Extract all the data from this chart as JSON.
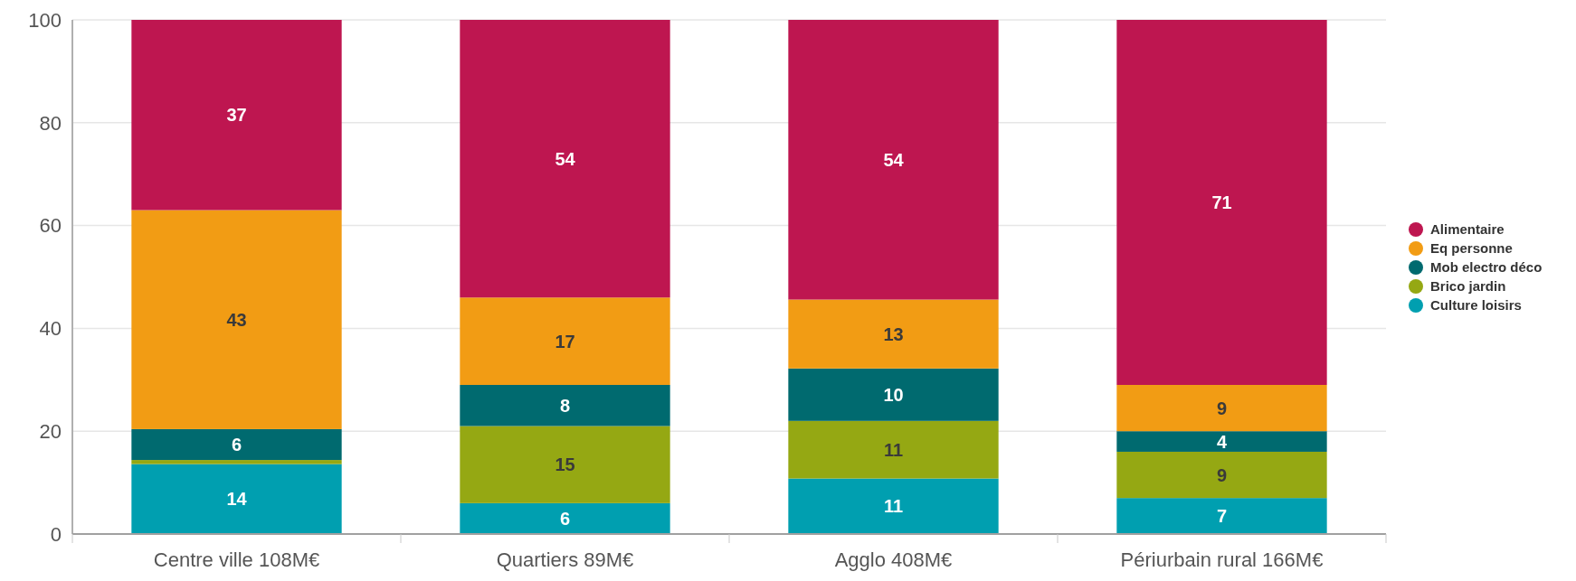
{
  "chart_data": {
    "type": "bar",
    "stacked": true,
    "categories": [
      "Centre ville 108M€",
      "Quartiers 89M€",
      "Agglo 408M€",
      "Périurbain rural 166M€"
    ],
    "series": [
      {
        "name": "Culture loisirs",
        "color": "#009fb0",
        "values": [
          13.6,
          6,
          10.8,
          7
        ],
        "value_labels": [
          "14",
          "6",
          "11",
          "7"
        ]
      },
      {
        "name": "Brico jardin",
        "color": "#95a813",
        "values": [
          0.8,
          15,
          11.2,
          9
        ],
        "value_labels": [
          null,
          "15",
          "11",
          "9"
        ]
      },
      {
        "name": "Mob electro déco",
        "color": "#006a6f",
        "values": [
          6,
          8,
          10.2,
          4
        ],
        "value_labels": [
          "6",
          "8",
          "10",
          "4"
        ]
      },
      {
        "name": "Eq personne",
        "color": "#f29c14",
        "values": [
          42.6,
          17,
          13.4,
          9
        ],
        "value_labels": [
          "43",
          "17",
          "13",
          "9"
        ]
      },
      {
        "name": "Alimentaire",
        "color": "#be1650",
        "values": [
          37,
          54,
          54.4,
          71
        ],
        "value_labels": [
          "37",
          "54",
          "54",
          "71"
        ]
      }
    ],
    "ylim": [
      0,
      100
    ],
    "yticks": [
      0,
      20,
      40,
      60,
      80,
      100
    ],
    "grid": "y",
    "legend": "right"
  }
}
